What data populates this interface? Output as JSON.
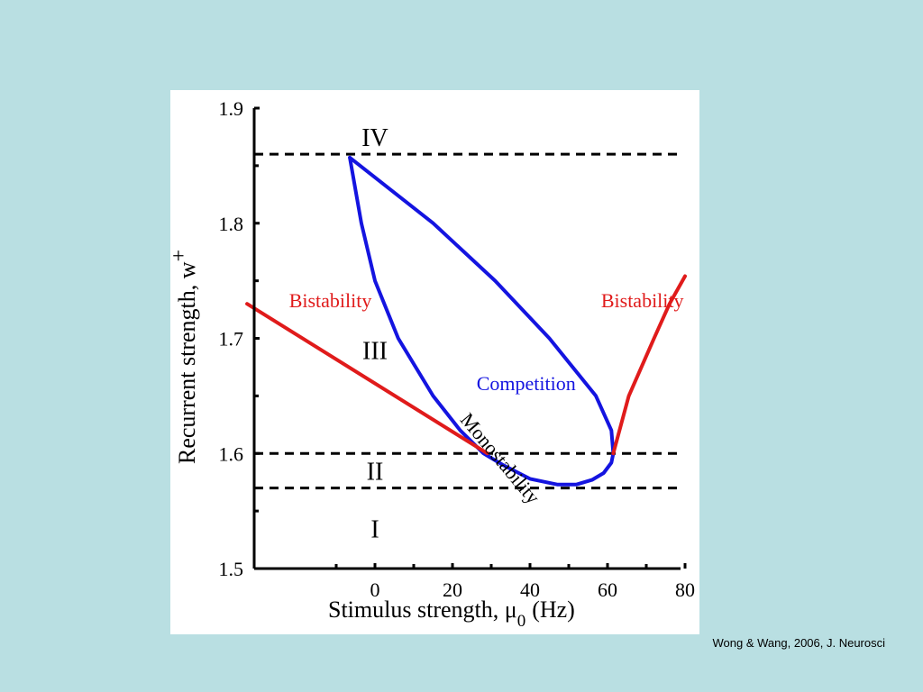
{
  "citation": "Wong & Wang, 2006, J. Neurosci",
  "colors": {
    "background": "#b9dfe2",
    "panel": "#ffffff",
    "bistability": "#e01b1b",
    "competition": "#1414e0",
    "axis": "#000000"
  },
  "chart_data": {
    "type": "line",
    "xlabel": "Stimulus strength, μ",
    "xlabel_sub": "0",
    "xlabel_unit": "(Hz)",
    "ylabel": "Recurrent strength,  w",
    "ylabel_sub": "+",
    "xlim": [
      -33,
      80
    ],
    "ylim": [
      1.5,
      1.9
    ],
    "x_ticks": [
      0,
      20,
      40,
      60,
      80
    ],
    "x_tick_labels": [
      "0",
      "20",
      "40",
      "60",
      "80"
    ],
    "y_ticks": [
      1.5,
      1.6,
      1.7,
      1.8,
      1.9
    ],
    "y_tick_labels": [
      "1.5",
      "1.6",
      "1.7",
      "1.8",
      "1.9"
    ],
    "grid": false,
    "hlines": [
      1.86,
      1.6,
      1.57
    ],
    "regions": [
      {
        "label": "IV",
        "x": 0,
        "y": 1.875
      },
      {
        "label": "III",
        "x": 0,
        "y": 1.69
      },
      {
        "label": "II",
        "x": 0,
        "y": 1.585
      },
      {
        "label": "I",
        "x": 0,
        "y": 1.535
      }
    ],
    "series": [
      {
        "kind": "competition",
        "color": "#1414e0",
        "points": [
          [
            -6.5,
            1.857
          ],
          [
            -3.5,
            1.8
          ],
          [
            0,
            1.75
          ],
          [
            6,
            1.7
          ],
          [
            15,
            1.65
          ],
          [
            22,
            1.62
          ],
          [
            28,
            1.6
          ],
          [
            33,
            1.59
          ],
          [
            40,
            1.578
          ],
          [
            47,
            1.573
          ],
          [
            52,
            1.573
          ],
          [
            56,
            1.577
          ],
          [
            59,
            1.583
          ],
          [
            61,
            1.592
          ],
          [
            61.5,
            1.6
          ],
          [
            61,
            1.62
          ],
          [
            57,
            1.65
          ],
          [
            45,
            1.7
          ],
          [
            31,
            1.75
          ],
          [
            15,
            1.8
          ],
          [
            -6.5,
            1.857
          ]
        ]
      },
      {
        "kind": "bistability-left",
        "color": "#e01b1b",
        "points": [
          [
            -33,
            1.73
          ],
          [
            29,
            1.6
          ]
        ]
      },
      {
        "kind": "bistability-right",
        "color": "#e01b1b",
        "points": [
          [
            61.5,
            1.6
          ],
          [
            65.5,
            1.65
          ],
          [
            72,
            1.7
          ],
          [
            76,
            1.73
          ],
          [
            80,
            1.754
          ]
        ]
      }
    ],
    "annotations": [
      {
        "text": "Bistability",
        "color": "#e01b1b",
        "x": -11.5,
        "y": 1.727,
        "rotate": 0
      },
      {
        "text": "Bistability",
        "color": "#e01b1b",
        "x": 69,
        "y": 1.727,
        "rotate": 0
      },
      {
        "text": "Competition",
        "color": "#1414e0",
        "x": 39,
        "y": 1.655,
        "rotate": 0
      },
      {
        "text": "Monostability",
        "color": "#000000",
        "x": 31,
        "y": 1.592,
        "rotate": 50
      }
    ]
  }
}
